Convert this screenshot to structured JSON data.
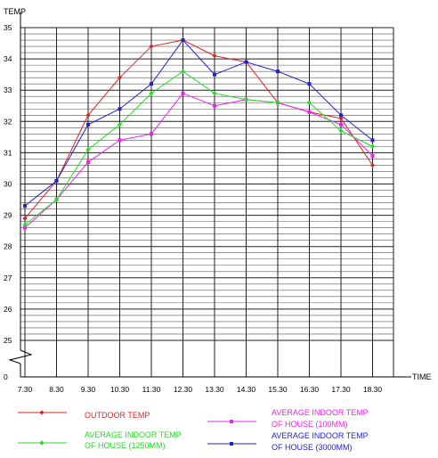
{
  "chart_data": {
    "type": "line",
    "ylabel": "TEMP",
    "xlabel": "TIME",
    "categories": [
      "7.30",
      "8.30",
      "9.30",
      "10.30",
      "11.30",
      "12.30",
      "13.30",
      "14.30",
      "15.30",
      "16.30",
      "17.30",
      "18.30"
    ],
    "y_ticks": [
      "0",
      "25",
      "26",
      "27",
      "28",
      "29",
      "30",
      "31",
      "32",
      "33",
      "34",
      "35"
    ],
    "ylim": [
      25,
      35
    ],
    "axis_break": true,
    "grid": true,
    "legend_position": "bottom",
    "series": [
      {
        "name": "OUTDOOR TEMP",
        "color": "#dd2222",
        "marker": "diamond",
        "values": [
          28.9,
          30.1,
          32.2,
          33.4,
          34.4,
          34.6,
          34.1,
          33.9,
          32.6,
          32.3,
          32.1,
          30.6
        ]
      },
      {
        "name": "AVERAGE INDOOR TEMP OF HOUSE (100MM)",
        "color": "#ee22ee",
        "marker": "square",
        "values": [
          28.6,
          29.5,
          30.7,
          31.4,
          31.6,
          32.9,
          32.5,
          32.7,
          32.6,
          32.3,
          31.9,
          30.9
        ]
      },
      {
        "name": "AVERAGE INDOOR TEMP OF HOUSE (1250MM)",
        "color": "#22dd22",
        "marker": "diamond",
        "values": [
          28.7,
          29.5,
          31.1,
          31.9,
          32.9,
          33.6,
          32.9,
          32.7,
          32.6,
          32.6,
          31.7,
          31.2
        ]
      },
      {
        "name": "AVERAGE INDOOR TEMP OF HOUSE (3000MM)",
        "color": "#2222cc",
        "marker": "square",
        "values": [
          29.3,
          30.1,
          31.9,
          32.4,
          33.2,
          34.6,
          33.5,
          33.9,
          33.6,
          33.2,
          32.2,
          31.4
        ]
      }
    ],
    "legend": [
      {
        "lines": [
          "OUTDOOR TEMP"
        ],
        "color": "#dd2222",
        "marker": "diamond"
      },
      {
        "lines": [
          "AVERAGE INDOOR TEMP",
          "OF HOUSE (100MM)"
        ],
        "color": "#ee22ee",
        "marker": "square"
      },
      {
        "lines": [
          "AVERAGE INDOOR TEMP",
          "OF HOUSE (1250MM)"
        ],
        "color": "#22dd22",
        "marker": "diamond"
      },
      {
        "lines": [
          "AVERAGE INDOOR TEMP",
          "OF HOUSE (3000MM)"
        ],
        "color": "#2222cc",
        "marker": "square"
      }
    ]
  }
}
